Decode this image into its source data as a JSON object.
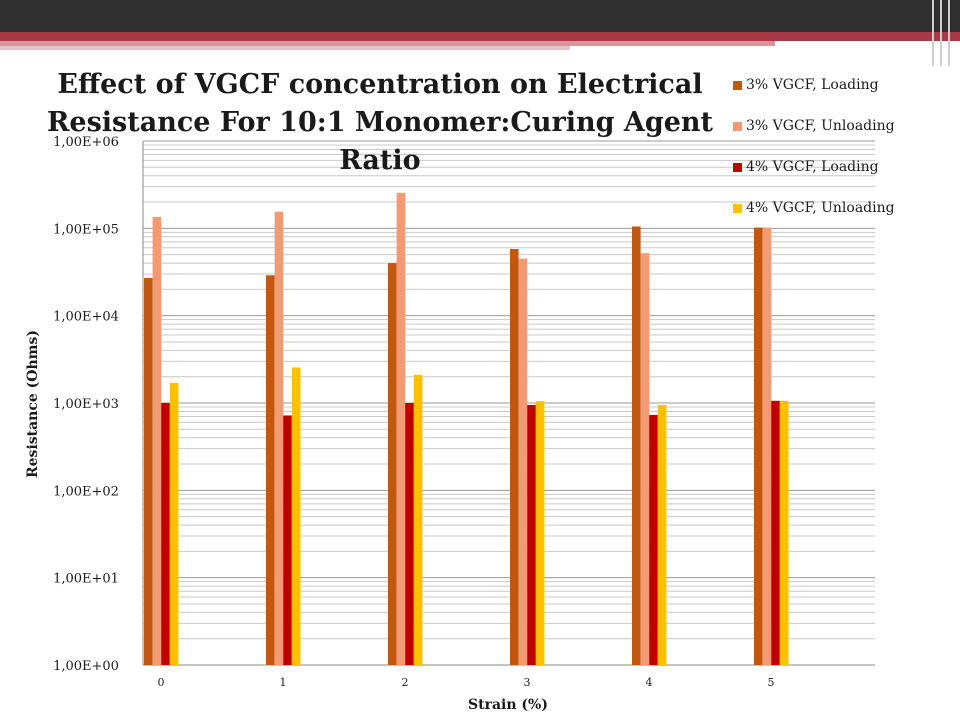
{
  "chart_data": {
    "type": "bar",
    "title": "Effect of VGCF concentration on Electrical Resistance For 10:1 Monomer:Curing Agent Ratio",
    "title_lines": [
      "Effect of VGCF concentration on Electrical",
      "Resistance For 10:1 Monomer:Curing Agent",
      "Ratio"
    ],
    "xlabel": "Strain (%)",
    "ylabel": "Resistance (Ohms)",
    "y_scale": "log",
    "ylim": [
      1,
      1000000
    ],
    "y_tick_labels": [
      "1,00E+00",
      "1,00E+01",
      "1,00E+02",
      "1,00E+03",
      "1,00E+04",
      "1,00E+05",
      "1,00E+06"
    ],
    "categories": [
      "0",
      "1",
      "2",
      "3",
      "4",
      "5"
    ],
    "grid": true,
    "legend_position": "top-right",
    "series": [
      {
        "name": "3% VGCF, Loading",
        "color": "#c0590f",
        "values": [
          27000,
          29000,
          40000,
          58000,
          105000,
          102000
        ]
      },
      {
        "name": "3% VGCF, Unloading",
        "color": "#f29a73",
        "values": [
          135000,
          155000,
          255000,
          45000,
          52000,
          102000
        ]
      },
      {
        "name": "4% VGCF, Loading",
        "color": "#c00000",
        "values": [
          1000,
          720,
          1000,
          950,
          730,
          1060
        ]
      },
      {
        "name": "4% VGCF, Unloading",
        "color": "#ffc000",
        "values": [
          1700,
          2550,
          2100,
          1050,
          950,
          1060
        ]
      }
    ]
  }
}
